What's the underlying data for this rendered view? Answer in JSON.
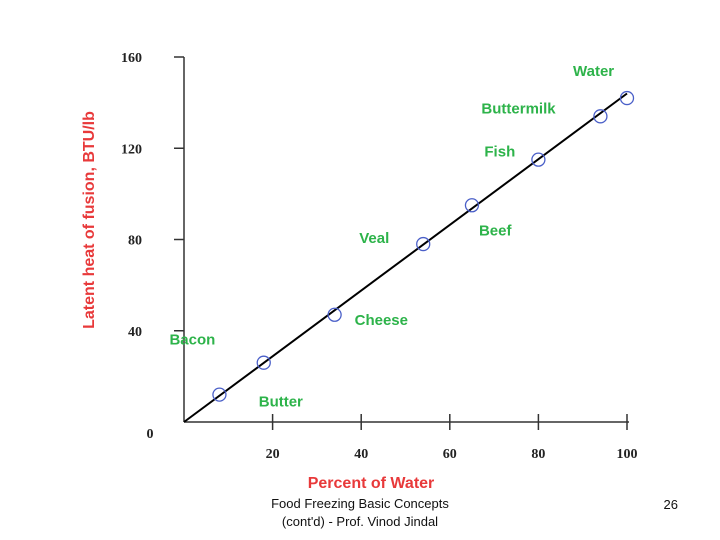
{
  "chart_data": {
    "type": "scatter",
    "title": "",
    "xlabel": "Percent of Water",
    "ylabel": "Latent heat of fusion, BTU/lb",
    "xlim": [
      0,
      100
    ],
    "ylim": [
      0,
      160
    ],
    "xticks": [
      20,
      40,
      60,
      80,
      100
    ],
    "yticks": [
      0,
      40,
      80,
      120,
      160
    ],
    "origin_label": "0",
    "points": [
      {
        "label": "Bacon",
        "x": 8,
        "y": 12
      },
      {
        "label": "Butter",
        "x": 18,
        "y": 26
      },
      {
        "label": "Cheese",
        "x": 34,
        "y": 47
      },
      {
        "label": "Veal",
        "x": 54,
        "y": 78
      },
      {
        "label": "Beef",
        "x": 65,
        "y": 95
      },
      {
        "label": "Fish",
        "x": 80,
        "y": 115
      },
      {
        "label": "Buttermilk",
        "x": 94,
        "y": 134
      },
      {
        "label": "Water",
        "x": 100,
        "y": 142
      }
    ],
    "trend_line": {
      "x": [
        0,
        100
      ],
      "y": [
        0,
        144
      ]
    },
    "colors": {
      "axis_title": "#e8393a",
      "point_labels": "#2db34a",
      "markers": "#4a5fc8",
      "line": "#000000"
    }
  },
  "footer": {
    "line1": "Food Freezing Basic Concepts",
    "line2": "(cont'd) - Prof. Vinod Jindal",
    "page_number": "26"
  }
}
